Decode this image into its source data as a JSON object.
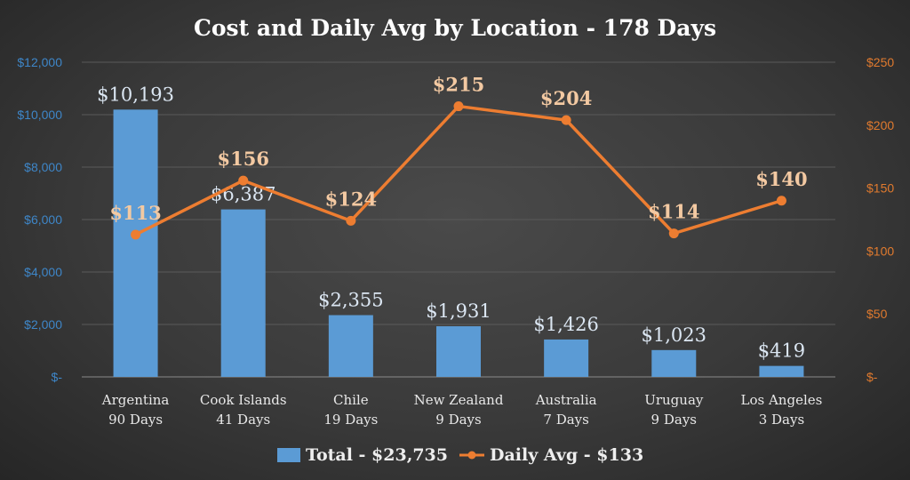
{
  "chart_data": {
    "type": "bar",
    "title": "Cost and Daily Avg by Location - 178 Days",
    "categories": [
      [
        "Argentina",
        "90 Days"
      ],
      [
        "Cook Islands",
        "41 Days"
      ],
      [
        "Chile",
        "19 Days"
      ],
      [
        "New Zealand",
        "9 Days"
      ],
      [
        "Australia",
        "7 Days"
      ],
      [
        "Uruguay",
        "9 Days"
      ],
      [
        "Los Angeles",
        "3 Days"
      ]
    ],
    "series": [
      {
        "name": "Total - $23,735",
        "type": "bar",
        "axis": "left",
        "color": "#5b9bd5",
        "values": [
          10193,
          6387,
          2355,
          1931,
          1426,
          1023,
          419
        ],
        "labels": [
          "$10,193",
          "$6,387",
          "$2,355",
          "$1,931",
          "$1,426",
          "$1,023",
          "$419"
        ]
      },
      {
        "name": "Daily Avg - $133",
        "type": "line",
        "axis": "right",
        "color": "#ed7d31",
        "values": [
          113,
          156,
          124,
          215,
          204,
          114,
          140
        ],
        "labels": [
          "$113",
          "$156",
          "$124",
          "$215",
          "$204",
          "$114",
          "$140"
        ]
      }
    ],
    "y_left": {
      "ylim": [
        0,
        12000
      ],
      "ticks": [
        0,
        2000,
        4000,
        6000,
        8000,
        10000,
        12000
      ],
      "tick_labels": [
        "$-",
        "$2,000",
        "$4,000",
        "$6,000",
        "$8,000",
        "$10,000",
        "$12,000"
      ],
      "color": "#3e86c8"
    },
    "y_right": {
      "ylim": [
        0,
        250
      ],
      "ticks": [
        0,
        50,
        100,
        150,
        200,
        250
      ],
      "tick_labels": [
        "$-",
        "$50",
        "$100",
        "$150",
        "$200",
        "$250"
      ],
      "color": "#e07a2e"
    },
    "grid": true,
    "legend": "bottom"
  }
}
